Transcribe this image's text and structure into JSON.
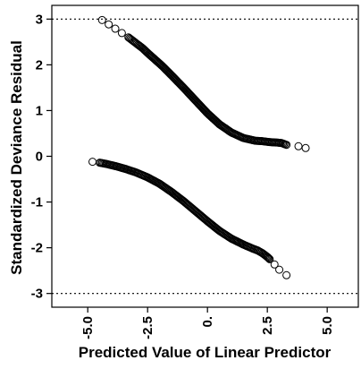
{
  "chart_data": {
    "type": "scatter",
    "xlabel": "Predicted Value of Linear Predictor",
    "ylabel": "Standardized Deviance Residual",
    "xlim": [
      -6.5,
      6.3
    ],
    "ylim": [
      -3.3,
      3.3
    ],
    "x_ticks": [
      -5.0,
      -2.5,
      0.0,
      2.5,
      5.0
    ],
    "x_tick_labels": [
      "-5.0",
      "-2.5",
      "0.",
      "2.5",
      "5.0"
    ],
    "y_ticks": [
      -3,
      -2,
      -1,
      0,
      1,
      2,
      3
    ],
    "y_tick_labels": [
      "-3",
      "-2",
      "-1",
      "0",
      "1",
      "2",
      "3"
    ],
    "reference_lines": [
      3,
      -3
    ],
    "grid": false,
    "series": [
      {
        "points": [
          [
            -4.4,
            2.98
          ],
          [
            -3.3,
            2.6
          ],
          [
            -3.0,
            2.48
          ],
          [
            -2.9,
            2.44
          ],
          [
            -2.7,
            2.36
          ],
          [
            -2.5,
            2.26
          ],
          [
            -2.2,
            2.12
          ],
          [
            -1.9,
            1.98
          ],
          [
            -1.5,
            1.77
          ],
          [
            -1.0,
            1.5
          ],
          [
            -0.5,
            1.22
          ],
          [
            0.0,
            0.94
          ],
          [
            0.5,
            0.7
          ],
          [
            1.0,
            0.52
          ],
          [
            1.5,
            0.4
          ],
          [
            2.0,
            0.34
          ],
          [
            2.3,
            0.33
          ],
          [
            2.6,
            0.31
          ],
          [
            2.9,
            0.3
          ],
          [
            3.1,
            0.29
          ],
          [
            3.3,
            0.25
          ],
          [
            3.8,
            0.22
          ],
          [
            4.1,
            0.18
          ]
        ]
      },
      {
        "points": [
          [
            -4.8,
            -0.12
          ],
          [
            -4.5,
            -0.14
          ],
          [
            -4.2,
            -0.17
          ],
          [
            -3.8,
            -0.22
          ],
          [
            -3.4,
            -0.28
          ],
          [
            -3.0,
            -0.35
          ],
          [
            -2.5,
            -0.46
          ],
          [
            -2.0,
            -0.6
          ],
          [
            -1.5,
            -0.78
          ],
          [
            -1.0,
            -0.98
          ],
          [
            -0.5,
            -1.2
          ],
          [
            0.0,
            -1.42
          ],
          [
            0.5,
            -1.63
          ],
          [
            1.0,
            -1.8
          ],
          [
            1.5,
            -1.93
          ],
          [
            1.9,
            -2.02
          ],
          [
            2.1,
            -2.06
          ],
          [
            2.3,
            -2.12
          ],
          [
            2.5,
            -2.2
          ],
          [
            2.6,
            -2.25
          ],
          [
            3.0,
            -2.48
          ],
          [
            3.3,
            -2.6
          ]
        ]
      }
    ]
  }
}
